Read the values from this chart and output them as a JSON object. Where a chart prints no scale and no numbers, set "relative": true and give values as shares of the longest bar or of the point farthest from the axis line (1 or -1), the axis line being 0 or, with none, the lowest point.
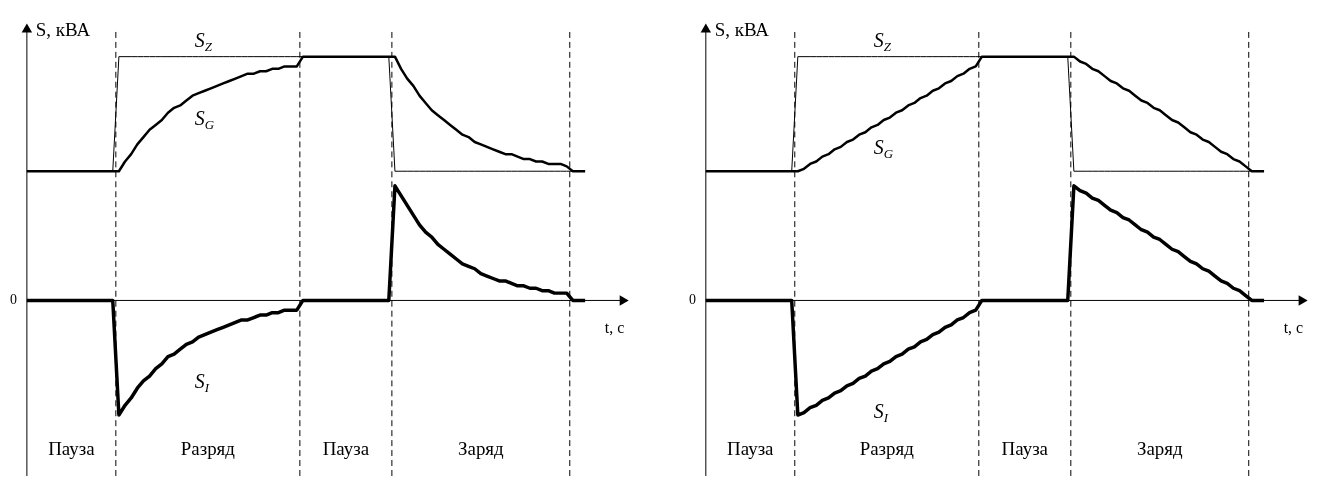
{
  "chart_data": [
    {
      "type": "line",
      "relative": true,
      "ylabel": "S, кВА",
      "xlabel": "t, с",
      "line_style": "solid",
      "marker": "none",
      "categories": [
        null,
        null,
        null,
        null,
        null,
        null,
        null,
        null,
        null,
        null,
        null,
        null,
        null,
        null,
        null,
        null,
        null,
        null,
        null,
        null,
        null,
        null,
        null,
        null,
        null,
        null,
        null,
        null,
        null,
        null,
        null,
        null,
        null,
        null,
        null,
        null,
        null,
        null,
        null,
        null,
        null,
        null,
        null,
        null,
        null,
        null,
        null,
        null,
        null,
        null,
        null,
        null,
        null,
        null,
        null,
        null,
        null,
        null,
        null,
        null,
        null,
        null,
        null,
        null,
        null,
        null,
        null,
        null,
        null,
        null,
        null,
        null,
        null,
        null,
        null,
        null,
        null,
        null,
        null,
        null,
        null,
        null,
        null,
        null,
        null,
        null,
        null,
        null,
        null,
        null,
        null,
        null
      ],
      "series": [
        {
          "name": "S$_{Z}$",
          "color": "#000000",
          "values": [
            0.53,
            0.53,
            0.53,
            0.53,
            0.53,
            0.53,
            0.53,
            0.53,
            0.53,
            0.53,
            0.53,
            0.53,
            0.53,
            0.53,
            0.53,
            1,
            1,
            1,
            1,
            1,
            1,
            1,
            1,
            1,
            1,
            1,
            1,
            1,
            1,
            1,
            1,
            1,
            1,
            1,
            1,
            1,
            1,
            1,
            1,
            1,
            1,
            1,
            1,
            1,
            1,
            1,
            1,
            1,
            1,
            1,
            1,
            1,
            1,
            1,
            1,
            1,
            1,
            1,
            1,
            1,
            0.53,
            0.53,
            0.53,
            0.53,
            0.53,
            0.53,
            0.53,
            0.53,
            0.53,
            0.53,
            0.53,
            0.53,
            0.53,
            0.53,
            0.53,
            0.53,
            0.53,
            0.53,
            0.53,
            0.53,
            0.53,
            0.53,
            0.53,
            0.53,
            0.53,
            0.53,
            0.53,
            0.53,
            0.53,
            0.53,
            0.53,
            0.53
          ]
        },
        {
          "name": "S$_{G}$",
          "color": "#000000",
          "values": [
            0.53,
            0.53,
            0.53,
            0.53,
            0.53,
            0.53,
            0.53,
            0.53,
            0.53,
            0.53,
            0.53,
            0.53,
            0.53,
            0.53,
            0.53,
            0.53,
            0.57,
            0.6,
            0.64,
            0.67,
            0.7,
            0.72,
            0.74,
            0.77,
            0.79,
            0.8,
            0.82,
            0.84,
            0.85,
            0.86,
            0.87,
            0.88,
            0.89,
            0.9,
            0.91,
            0.92,
            0.93,
            0.93,
            0.94,
            0.94,
            0.95,
            0.95,
            0.96,
            0.96,
            0.96,
            1,
            1,
            1,
            1,
            1,
            1,
            1,
            1,
            1,
            1,
            1,
            1,
            1,
            1,
            1,
            1.0,
            0.95,
            0.91,
            0.88,
            0.84,
            0.81,
            0.78,
            0.76,
            0.74,
            0.72,
            0.7,
            0.68,
            0.67,
            0.65,
            0.64,
            0.63,
            0.62,
            0.61,
            0.6,
            0.6,
            0.59,
            0.58,
            0.58,
            0.57,
            0.57,
            0.56,
            0.56,
            0.56,
            0.55,
            0.53,
            0.53,
            0.53
          ]
        },
        {
          "name": "S$_{I}$",
          "color": "#000000",
          "values": [
            0,
            0,
            0,
            0,
            0,
            0,
            0,
            0,
            0,
            0,
            0,
            0,
            0,
            0,
            0,
            -0.47,
            -0.43,
            -0.4,
            -0.36,
            -0.33,
            -0.31,
            -0.28,
            -0.26,
            -0.23,
            -0.22,
            -0.2,
            -0.18,
            -0.17,
            -0.15,
            -0.14,
            -0.13,
            -0.12,
            -0.11,
            -0.1,
            -0.09,
            -0.08,
            -0.08,
            -0.07,
            -0.06,
            -0.06,
            -0.05,
            -0.05,
            -0.04,
            -0.04,
            -0.04,
            0,
            0,
            0,
            0,
            0,
            0,
            0,
            0,
            0,
            0,
            0,
            0,
            0,
            0,
            0,
            0.47,
            0.43,
            0.39,
            0.35,
            0.31,
            0.28,
            0.26,
            0.23,
            0.21,
            0.19,
            0.17,
            0.15,
            0.14,
            0.13,
            0.11,
            0.1,
            0.09,
            0.08,
            0.08,
            0.07,
            0.06,
            0.06,
            0.05,
            0.05,
            0.04,
            0.04,
            0.03,
            0.03,
            0.03,
            0,
            0,
            0
          ]
        }
      ],
      "annotations": [
        "0",
        "Пауза",
        "Разряд",
        "Пауза",
        "Заряд"
      ]
    },
    {
      "type": "line",
      "relative": true,
      "ylabel": "S, кВА",
      "xlabel": "t, с",
      "line_style": "solid",
      "marker": "none",
      "categories": [
        null,
        null,
        null,
        null,
        null,
        null,
        null,
        null,
        null,
        null,
        null,
        null,
        null,
        null,
        null,
        null,
        null,
        null,
        null,
        null,
        null,
        null,
        null,
        null,
        null,
        null,
        null,
        null,
        null,
        null,
        null,
        null,
        null,
        null,
        null,
        null,
        null,
        null,
        null,
        null,
        null,
        null,
        null,
        null,
        null,
        null,
        null,
        null,
        null,
        null,
        null,
        null,
        null,
        null,
        null,
        null,
        null,
        null,
        null,
        null,
        null,
        null,
        null,
        null,
        null,
        null,
        null,
        null,
        null,
        null,
        null,
        null,
        null,
        null,
        null,
        null,
        null,
        null,
        null,
        null,
        null,
        null,
        null,
        null,
        null,
        null,
        null,
        null,
        null,
        null,
        null,
        null
      ],
      "series": [
        {
          "name": "S$_{Z}$",
          "color": "#000000",
          "values": [
            0.53,
            0.53,
            0.53,
            0.53,
            0.53,
            0.53,
            0.53,
            0.53,
            0.53,
            0.53,
            0.53,
            0.53,
            0.53,
            0.53,
            0.53,
            1,
            1,
            1,
            1,
            1,
            1,
            1,
            1,
            1,
            1,
            1,
            1,
            1,
            1,
            1,
            1,
            1,
            1,
            1,
            1,
            1,
            1,
            1,
            1,
            1,
            1,
            1,
            1,
            1,
            1,
            1,
            1,
            1,
            1,
            1,
            1,
            1,
            1,
            1,
            1,
            1,
            1,
            1,
            1,
            1,
            0.53,
            0.53,
            0.53,
            0.53,
            0.53,
            0.53,
            0.53,
            0.53,
            0.53,
            0.53,
            0.53,
            0.53,
            0.53,
            0.53,
            0.53,
            0.53,
            0.53,
            0.53,
            0.53,
            0.53,
            0.53,
            0.53,
            0.53,
            0.53,
            0.53,
            0.53,
            0.53,
            0.53,
            0.53,
            0.53,
            0.53,
            0.53
          ]
        },
        {
          "name": "S$_{G}$",
          "color": "#000000",
          "values": [
            0.53,
            0.53,
            0.53,
            0.53,
            0.53,
            0.53,
            0.53,
            0.53,
            0.53,
            0.53,
            0.53,
            0.53,
            0.53,
            0.53,
            0.53,
            0.53,
            0.54,
            0.56,
            0.57,
            0.59,
            0.6,
            0.62,
            0.63,
            0.65,
            0.66,
            0.68,
            0.69,
            0.71,
            0.72,
            0.74,
            0.75,
            0.77,
            0.78,
            0.8,
            0.81,
            0.83,
            0.84,
            0.86,
            0.87,
            0.89,
            0.9,
            0.92,
            0.93,
            0.95,
            0.96,
            1,
            1,
            1,
            1,
            1,
            1,
            1,
            1,
            1,
            1,
            1,
            1,
            1,
            1,
            1,
            1.0,
            0.98,
            0.97,
            0.95,
            0.94,
            0.92,
            0.9,
            0.89,
            0.87,
            0.86,
            0.84,
            0.82,
            0.81,
            0.79,
            0.78,
            0.76,
            0.74,
            0.73,
            0.71,
            0.69,
            0.68,
            0.66,
            0.65,
            0.63,
            0.61,
            0.6,
            0.58,
            0.57,
            0.55,
            0.53,
            0.53,
            0.53
          ]
        },
        {
          "name": "S$_{I}$",
          "color": "#000000",
          "values": [
            0,
            0,
            0,
            0,
            0,
            0,
            0,
            0,
            0,
            0,
            0,
            0,
            0,
            0,
            0,
            -0.47,
            -0.46,
            -0.44,
            -0.43,
            -0.41,
            -0.4,
            -0.38,
            -0.37,
            -0.35,
            -0.34,
            -0.32,
            -0.31,
            -0.29,
            -0.28,
            -0.26,
            -0.25,
            -0.23,
            -0.22,
            -0.2,
            -0.19,
            -0.17,
            -0.16,
            -0.14,
            -0.13,
            -0.11,
            -0.1,
            -0.08,
            -0.07,
            -0.05,
            -0.04,
            0,
            0,
            0,
            0,
            0,
            0,
            0,
            0,
            0,
            0,
            0,
            0,
            0,
            0,
            0,
            0.47,
            0.45,
            0.44,
            0.42,
            0.41,
            0.39,
            0.37,
            0.36,
            0.34,
            0.33,
            0.31,
            0.29,
            0.28,
            0.26,
            0.25,
            0.23,
            0.21,
            0.2,
            0.18,
            0.16,
            0.15,
            0.13,
            0.12,
            0.1,
            0.08,
            0.07,
            0.05,
            0.04,
            0.02,
            0,
            0,
            0
          ]
        }
      ],
      "annotations": [
        "0",
        "Пауза",
        "Разряд",
        "Пауза",
        "Заряд"
      ]
    }
  ]
}
